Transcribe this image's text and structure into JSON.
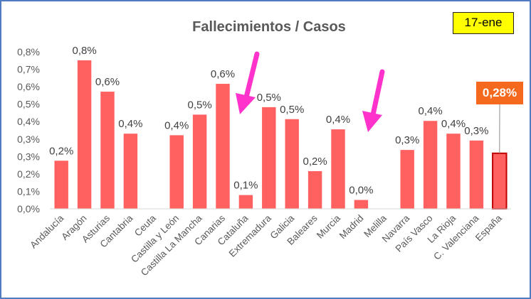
{
  "chart_data": {
    "type": "bar",
    "title": "Fallecimientos / Casos",
    "date_label": "17-ene",
    "categories": [
      "Andalucía",
      "Aragón",
      "Asturias",
      "Cantabria",
      "Ceuta",
      "Castilla y León",
      "Castilla La Mancha",
      "Canarias",
      "Cataluña",
      "Extremadura",
      "Galicia",
      "Baleares",
      "Murcia",
      "Madrid",
      "Melilla",
      "Navarra",
      "País Vasco",
      "La Rioja",
      "C. Valenciana",
      "España"
    ],
    "values": [
      0.245,
      0.757,
      0.597,
      0.383,
      null,
      0.375,
      0.48,
      0.637,
      0.07,
      0.518,
      0.457,
      0.192,
      0.405,
      0.045,
      null,
      0.3,
      0.448,
      0.383,
      0.348,
      0.283
    ],
    "data_labels": [
      "0,2%",
      "0,8%",
      "0,6%",
      "0,4%",
      "",
      "0,4%",
      "0,5%",
      "0,6%",
      "0,1%",
      "0,5%",
      "0,5%",
      "0,2%",
      "0,4%",
      "0,0%",
      "",
      "0,3%",
      "0,4%",
      "0,4%",
      "0,3%",
      ""
    ],
    "highlight_label": "0,28%",
    "y_ticks": [
      "0,0%",
      "0,1%",
      "0,2%",
      "0,3%",
      "0,3%",
      "0,4%",
      "0,5%",
      "0,6%",
      "0,7%",
      "0,8%"
    ],
    "ylim": [
      0,
      0.8
    ],
    "grid": false,
    "colors": {
      "bar": "#ff6161",
      "highlight_border": "#c00000",
      "callout": "#f4691e",
      "arrow": "#ff33cc",
      "date_box": "#ffff00",
      "frame": "#4f7cc0"
    }
  }
}
